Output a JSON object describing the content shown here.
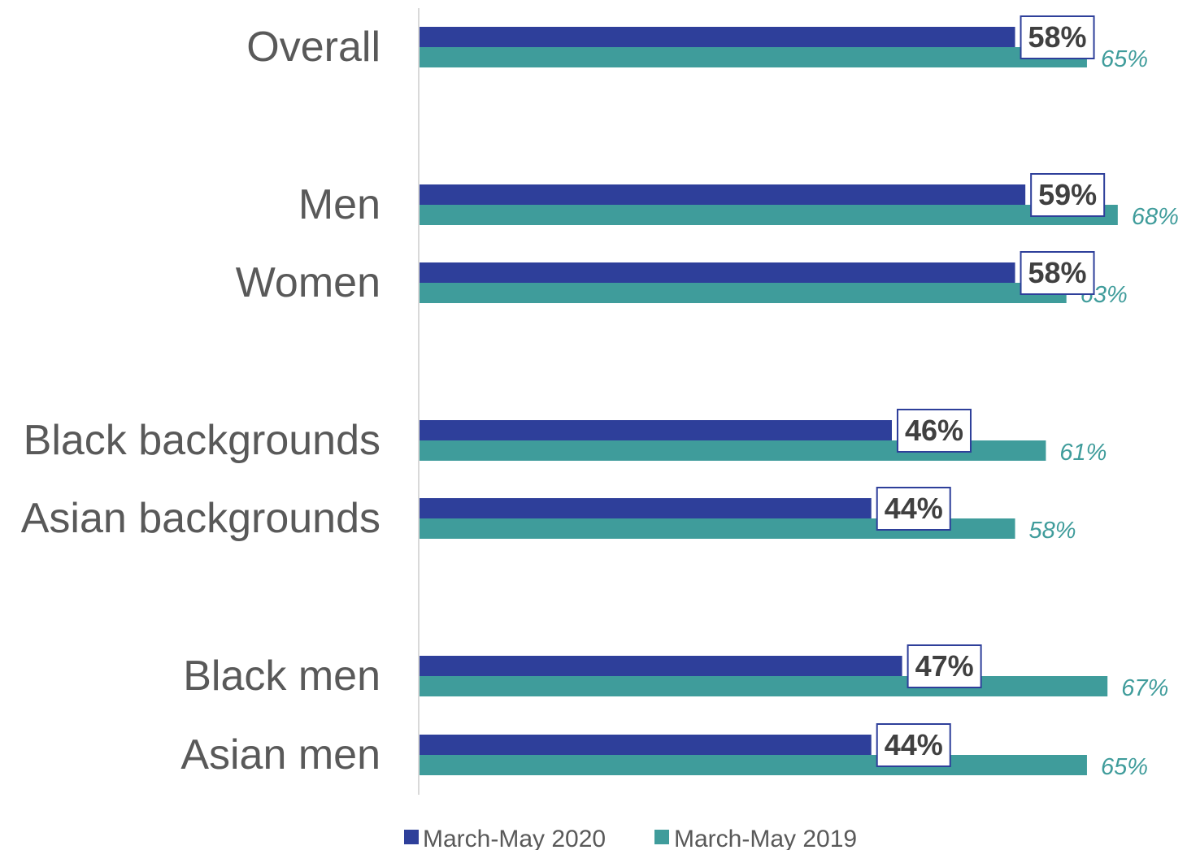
{
  "chart_data": {
    "type": "bar",
    "orientation": "horizontal",
    "categories": [
      "Overall",
      "Men",
      "Women",
      "Black backgrounds",
      "Asian backgrounds",
      "Black men",
      "Asian men"
    ],
    "series": [
      {
        "name": "March-May 2020",
        "values": [
          58,
          59,
          58,
          46,
          44,
          47,
          44
        ],
        "labels": [
          "58%",
          "59%",
          "58%",
          "46%",
          "44%",
          "47%",
          "44%"
        ],
        "color": "#2e3f9a"
      },
      {
        "name": "March-May 2019",
        "values": [
          65,
          68,
          63,
          61,
          58,
          67,
          65
        ],
        "labels": [
          "65%",
          "68%",
          "63%",
          "61%",
          "58%",
          "67%",
          "65%"
        ],
        "color": "#3f9c9b"
      }
    ],
    "xlim": [
      0,
      100
    ],
    "grid": false,
    "legend_position": "bottom"
  }
}
